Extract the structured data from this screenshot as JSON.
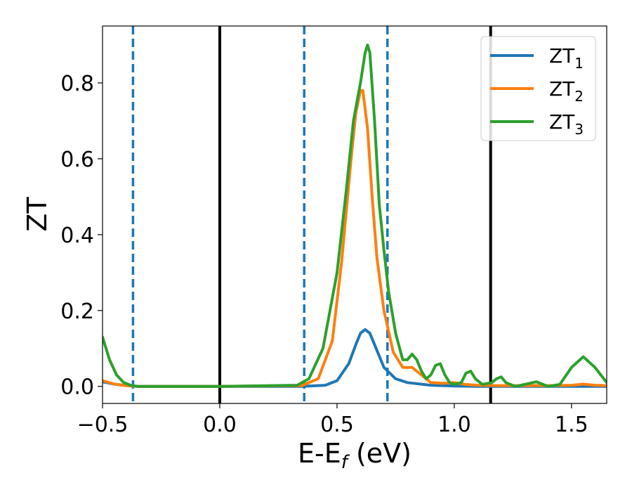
{
  "chart_data": {
    "type": "line",
    "xlabel": "E-E",
    "xlabel_sub": "f",
    "xlabel_unit": " (eV)",
    "ylabel": "ZT",
    "xlim": [
      -0.5,
      1.65
    ],
    "ylim": [
      -0.045,
      0.95
    ],
    "xticks": [
      -0.5,
      0.0,
      0.5,
      1.0,
      1.5
    ],
    "xtick_labels": [
      "−0.5",
      "0.0",
      "0.5",
      "1.0",
      "1.5"
    ],
    "yticks": [
      0.0,
      0.2,
      0.4,
      0.6,
      0.8
    ],
    "ytick_labels": [
      "0.0",
      "0.2",
      "0.4",
      "0.6",
      "0.8"
    ],
    "grid": false,
    "legend_position": "top-right",
    "series": [
      {
        "name": "ZT",
        "name_sub": "1",
        "color": "#1f77b4",
        "x": [
          -0.5,
          -0.45,
          -0.4,
          -0.35,
          0.0,
          0.35,
          0.45,
          0.5,
          0.55,
          0.58,
          0.6,
          0.62,
          0.64,
          0.66,
          0.7,
          0.75,
          0.8,
          0.9,
          1.0,
          1.1,
          1.3,
          1.5,
          1.65
        ],
        "y": [
          0.012,
          0.006,
          0.002,
          0.0,
          0.0,
          0.0,
          0.003,
          0.015,
          0.06,
          0.11,
          0.14,
          0.15,
          0.14,
          0.11,
          0.05,
          0.02,
          0.01,
          0.003,
          0.001,
          0.0,
          0.0,
          0.0,
          0.0
        ]
      },
      {
        "name": "ZT",
        "name_sub": "2",
        "color": "#ff7f0e",
        "x": [
          -0.5,
          -0.45,
          -0.4,
          -0.35,
          0.0,
          0.35,
          0.42,
          0.48,
          0.52,
          0.56,
          0.58,
          0.6,
          0.61,
          0.63,
          0.65,
          0.67,
          0.7,
          0.74,
          0.78,
          0.82,
          0.86,
          0.9,
          0.95,
          1.0,
          1.05,
          1.1,
          1.2,
          1.3,
          1.4,
          1.5,
          1.55,
          1.6,
          1.65
        ],
        "y": [
          0.015,
          0.006,
          0.002,
          0.0,
          0.0,
          0.002,
          0.02,
          0.12,
          0.33,
          0.6,
          0.72,
          0.78,
          0.78,
          0.68,
          0.5,
          0.34,
          0.2,
          0.09,
          0.05,
          0.05,
          0.03,
          0.01,
          0.008,
          0.01,
          0.005,
          0.003,
          0.002,
          0.002,
          0.002,
          0.003,
          0.006,
          0.003,
          0.002
        ]
      },
      {
        "name": "ZT",
        "name_sub": "3",
        "color": "#2ca02c",
        "x": [
          -0.5,
          -0.47,
          -0.44,
          -0.41,
          -0.38,
          -0.35,
          0.0,
          0.33,
          0.38,
          0.44,
          0.5,
          0.54,
          0.57,
          0.6,
          0.62,
          0.63,
          0.64,
          0.66,
          0.68,
          0.7,
          0.72,
          0.75,
          0.78,
          0.8,
          0.82,
          0.84,
          0.86,
          0.88,
          0.9,
          0.92,
          0.94,
          0.96,
          0.98,
          1.0,
          1.03,
          1.05,
          1.07,
          1.09,
          1.12,
          1.16,
          1.18,
          1.2,
          1.22,
          1.26,
          1.3,
          1.35,
          1.4,
          1.45,
          1.5,
          1.55,
          1.6,
          1.65
        ],
        "y": [
          0.13,
          0.07,
          0.03,
          0.01,
          0.003,
          0.0,
          0.0,
          0.003,
          0.02,
          0.1,
          0.3,
          0.52,
          0.7,
          0.8,
          0.88,
          0.9,
          0.88,
          0.7,
          0.48,
          0.36,
          0.25,
          0.14,
          0.07,
          0.07,
          0.085,
          0.07,
          0.04,
          0.02,
          0.03,
          0.055,
          0.06,
          0.03,
          0.01,
          0.005,
          0.01,
          0.035,
          0.04,
          0.02,
          0.005,
          0.01,
          0.02,
          0.025,
          0.01,
          0.0,
          0.005,
          0.012,
          0.0,
          0.005,
          0.05,
          0.078,
          0.05,
          0.01
        ]
      }
    ],
    "vlines": [
      {
        "x": -0.37,
        "style": "dashed",
        "color": "#1f77b4"
      },
      {
        "x": 0.0,
        "style": "solid",
        "color": "#000000"
      },
      {
        "x": 0.36,
        "style": "dashed",
        "color": "#1f77b4"
      },
      {
        "x": 0.715,
        "style": "dashed",
        "color": "#1f77b4"
      },
      {
        "x": 1.155,
        "style": "solid",
        "color": "#000000"
      }
    ]
  }
}
